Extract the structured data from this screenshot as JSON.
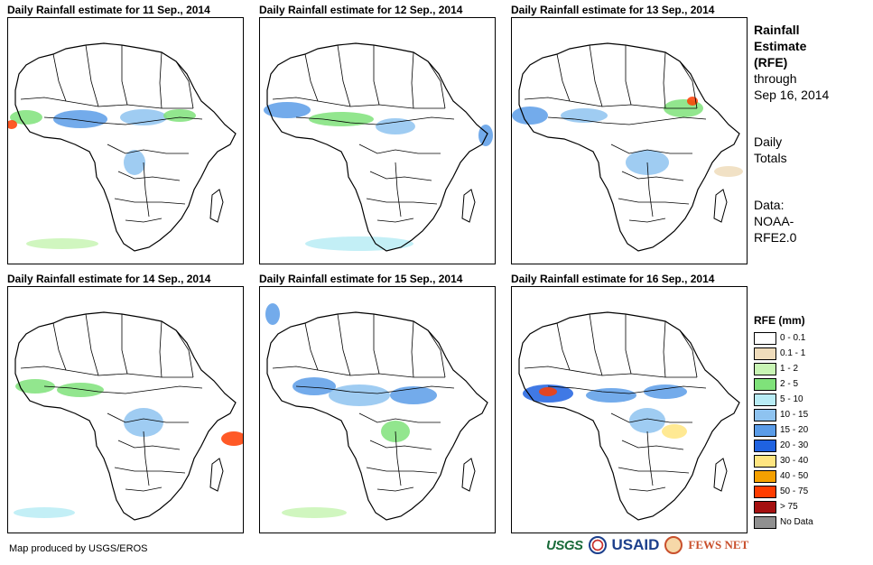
{
  "panels": [
    {
      "title": "Daily Rainfall estimate for 11 Sep., 2014"
    },
    {
      "title": "Daily Rainfall estimate for 12 Sep., 2014"
    },
    {
      "title": "Daily Rainfall estimate for 13 Sep., 2014"
    },
    {
      "title": "Daily Rainfall estimate for 14 Sep., 2014"
    },
    {
      "title": "Daily Rainfall estimate for 15 Sep., 2014"
    },
    {
      "title": "Daily Rainfall estimate for 16 Sep., 2014"
    }
  ],
  "side": {
    "title_l1": "Rainfall",
    "title_l2": "Estimate",
    "title_l3": "(RFE)",
    "through_l1": "through",
    "through_l2": "Sep 16, 2014",
    "totals_l1": "Daily",
    "totals_l2": "Totals",
    "data_l1": "Data:",
    "data_l2": "NOAA-",
    "data_l3": "RFE2.0"
  },
  "legend": {
    "title": "RFE (mm)",
    "items": [
      {
        "label": "0 - 0.1",
        "color": "#ffffff"
      },
      {
        "label": "0.1 - 1",
        "color": "#efdcbb"
      },
      {
        "label": "1 - 2",
        "color": "#c8f5b4"
      },
      {
        "label": "2 - 5",
        "color": "#7fe27a"
      },
      {
        "label": "5 - 10",
        "color": "#b8ecf5"
      },
      {
        "label": "10 - 15",
        "color": "#8ec3f0"
      },
      {
        "label": "15 - 20",
        "color": "#5a9ce8"
      },
      {
        "label": "20 - 30",
        "color": "#1f62e0"
      },
      {
        "label": "30 - 40",
        "color": "#ffe580"
      },
      {
        "label": "40 - 50",
        "color": "#f5a000"
      },
      {
        "label": "50 - 75",
        "color": "#ff3c00"
      },
      {
        "label": "> 75",
        "color": "#a51010"
      },
      {
        "label": "No Data",
        "color": "#909090"
      }
    ]
  },
  "footer": {
    "credit": "Map produced by USGS/EROS"
  },
  "logos": {
    "usgs": "USGS",
    "usaid": "USAID",
    "fews": "FEWS NET"
  }
}
